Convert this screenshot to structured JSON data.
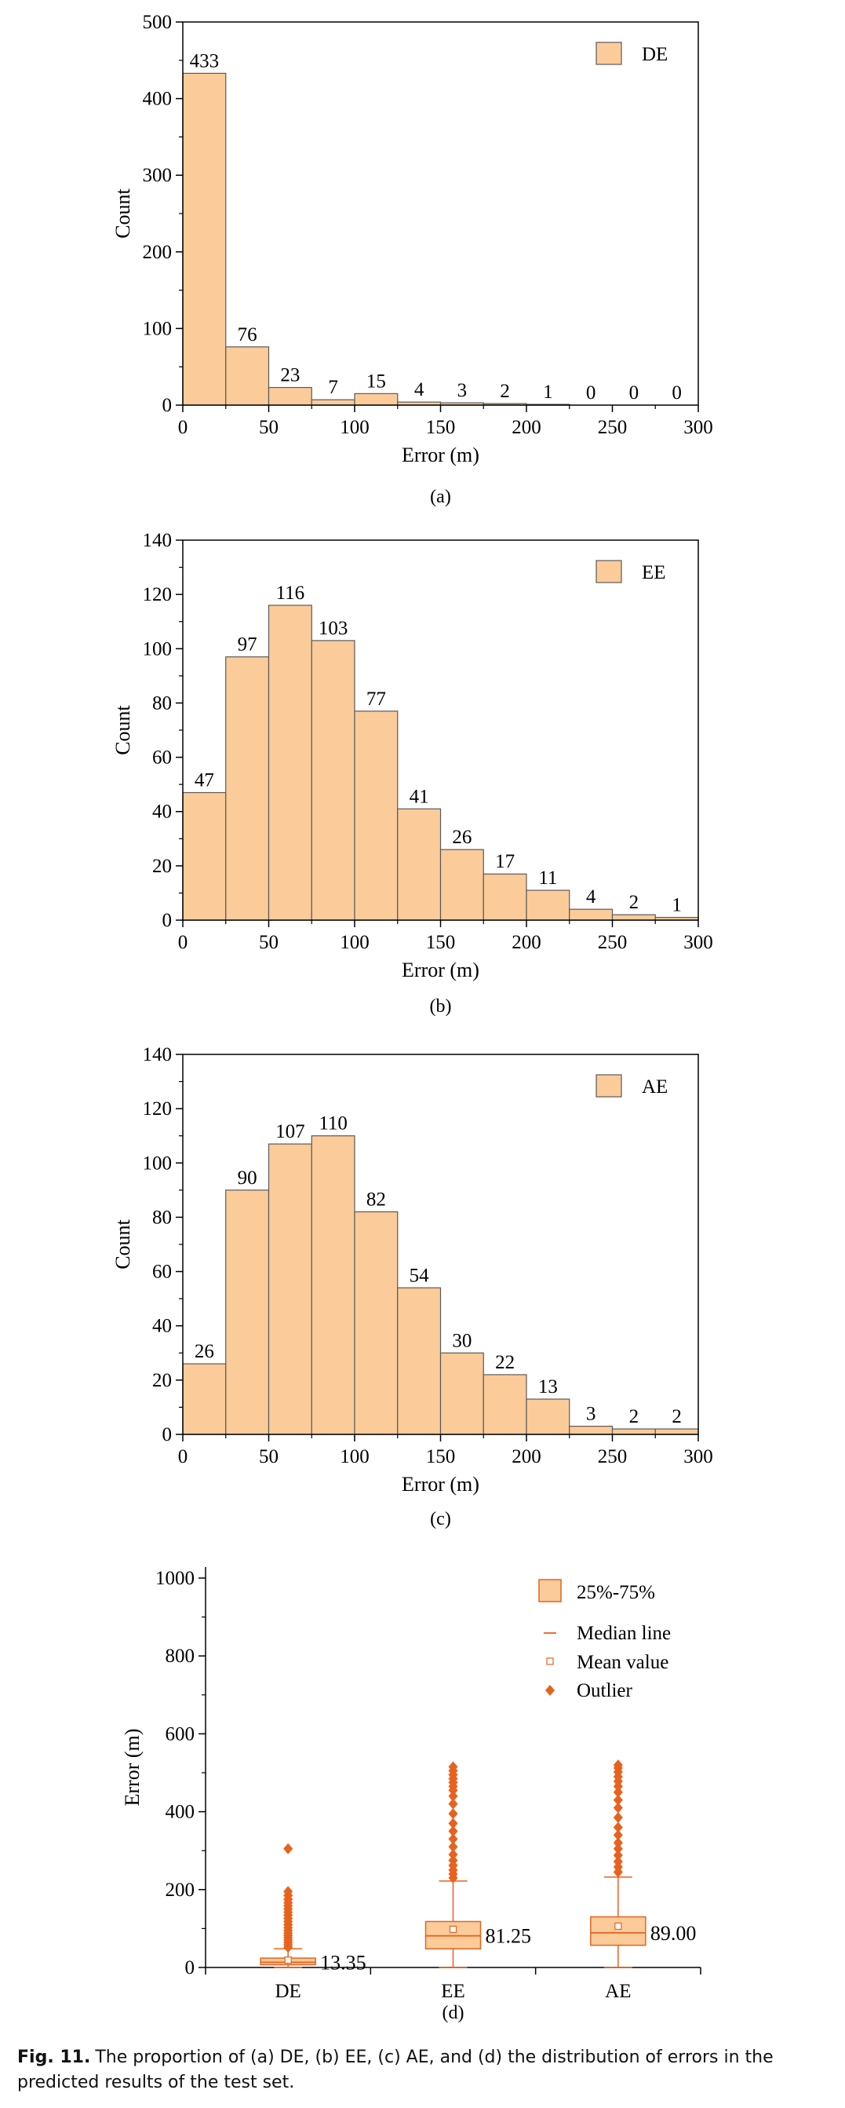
{
  "colors": {
    "hist_fill": "#FBCB9A",
    "hist_stroke": "#5A5A5A",
    "box_fill": "#FBCB9A",
    "box_stroke": "#E8621E",
    "outlier": "#E8621E",
    "axis": "#000000"
  },
  "chart_data": [
    {
      "type": "bar",
      "panel_label": "(a)",
      "legend": [
        "DE"
      ],
      "legend_position": "top-right",
      "xlabel": "Error (m)",
      "ylabel": "Count",
      "xlim": [
        0,
        300
      ],
      "ylim": [
        0,
        500
      ],
      "x_ticks": [
        0,
        50,
        100,
        150,
        200,
        250,
        300
      ],
      "y_ticks": [
        0,
        100,
        200,
        300,
        400,
        500
      ],
      "bin_width": 25,
      "bin_starts": [
        0,
        25,
        50,
        75,
        100,
        125,
        150,
        175,
        200,
        225,
        250,
        275
      ],
      "values": [
        433,
        76,
        23,
        7,
        15,
        4,
        3,
        2,
        1,
        0,
        0,
        0
      ],
      "labels": [
        "433",
        "76",
        "23",
        "7",
        "15",
        "4",
        "3",
        "2",
        "1",
        "0",
        "0",
        "0"
      ]
    },
    {
      "type": "bar",
      "panel_label": "(b)",
      "legend": [
        "EE"
      ],
      "legend_position": "top-right",
      "xlabel": "Error (m)",
      "ylabel": "Count",
      "xlim": [
        0,
        300
      ],
      "ylim": [
        0,
        140
      ],
      "x_ticks": [
        0,
        50,
        100,
        150,
        200,
        250,
        300
      ],
      "y_ticks": [
        0,
        20,
        40,
        60,
        80,
        100,
        120,
        140
      ],
      "bin_width": 25,
      "bin_starts": [
        0,
        25,
        50,
        75,
        100,
        125,
        150,
        175,
        200,
        225,
        250,
        275
      ],
      "values": [
        47,
        97,
        116,
        103,
        77,
        41,
        26,
        17,
        11,
        4,
        2,
        1
      ],
      "labels": [
        "47",
        "97",
        "116",
        "103",
        "77",
        "41",
        "26",
        "17",
        "11",
        "4",
        "2",
        "1"
      ]
    },
    {
      "type": "bar",
      "panel_label": "(c)",
      "legend": [
        "AE"
      ],
      "legend_position": "top-right",
      "xlabel": "Error (m)",
      "ylabel": "Count",
      "xlim": [
        0,
        300
      ],
      "ylim": [
        0,
        140
      ],
      "x_ticks": [
        0,
        50,
        100,
        150,
        200,
        250,
        300
      ],
      "y_ticks": [
        0,
        20,
        40,
        60,
        80,
        100,
        120,
        140
      ],
      "bin_width": 25,
      "bin_starts": [
        0,
        25,
        50,
        75,
        100,
        125,
        150,
        175,
        200,
        225,
        250,
        275
      ],
      "values": [
        26,
        90,
        107,
        110,
        82,
        54,
        30,
        22,
        13,
        3,
        2,
        2
      ],
      "labels": [
        "26",
        "90",
        "107",
        "110",
        "82",
        "54",
        "30",
        "22",
        "13",
        "3",
        "2",
        "2"
      ]
    },
    {
      "type": "box",
      "panel_label": "(d)",
      "ylabel": "Error (m)",
      "ylim": [
        0,
        1000
      ],
      "y_ticks": [
        0,
        200,
        400,
        600,
        800,
        1000
      ],
      "categories": [
        "DE",
        "EE",
        "AE"
      ],
      "legend_position": "top-right",
      "legend": [
        "25%-75%",
        "Median line",
        "Mean value",
        "Outlier"
      ],
      "boxes": [
        {
          "name": "DE",
          "q1": 7,
          "median": 13.35,
          "q3": 24,
          "mean": 19,
          "whisker_low": 0,
          "whisker_high": 48,
          "median_label": "13.35",
          "outliers": [
            52,
            58,
            64,
            70,
            76,
            82,
            88,
            95,
            102,
            110,
            118,
            126,
            134,
            142,
            150,
            158,
            166,
            175,
            185,
            195,
            305
          ]
        },
        {
          "name": "EE",
          "q1": 48,
          "median": 81.25,
          "q3": 118,
          "mean": 98,
          "whisker_low": 0,
          "whisker_high": 222,
          "median_label": "81.25",
          "outliers": [
            230,
            240,
            250,
            262,
            275,
            290,
            310,
            330,
            350,
            370,
            395,
            420,
            440,
            455,
            465,
            475,
            485,
            495,
            505,
            515
          ]
        },
        {
          "name": "AE",
          "q1": 57,
          "median": 89.0,
          "q3": 130,
          "mean": 106,
          "whisker_low": 0,
          "whisker_high": 232,
          "median_label": "89.00",
          "outliers": [
            245,
            258,
            272,
            288,
            305,
            320,
            340,
            360,
            385,
            410,
            430,
            450,
            465,
            478,
            490,
            502,
            512,
            520
          ]
        }
      ]
    }
  ],
  "caption": {
    "label": "Fig. 11.",
    "text": "The proportion of (a) DE, (b) EE, (c) AE, and (d) the distribution of errors in the predicted results of the test set."
  }
}
